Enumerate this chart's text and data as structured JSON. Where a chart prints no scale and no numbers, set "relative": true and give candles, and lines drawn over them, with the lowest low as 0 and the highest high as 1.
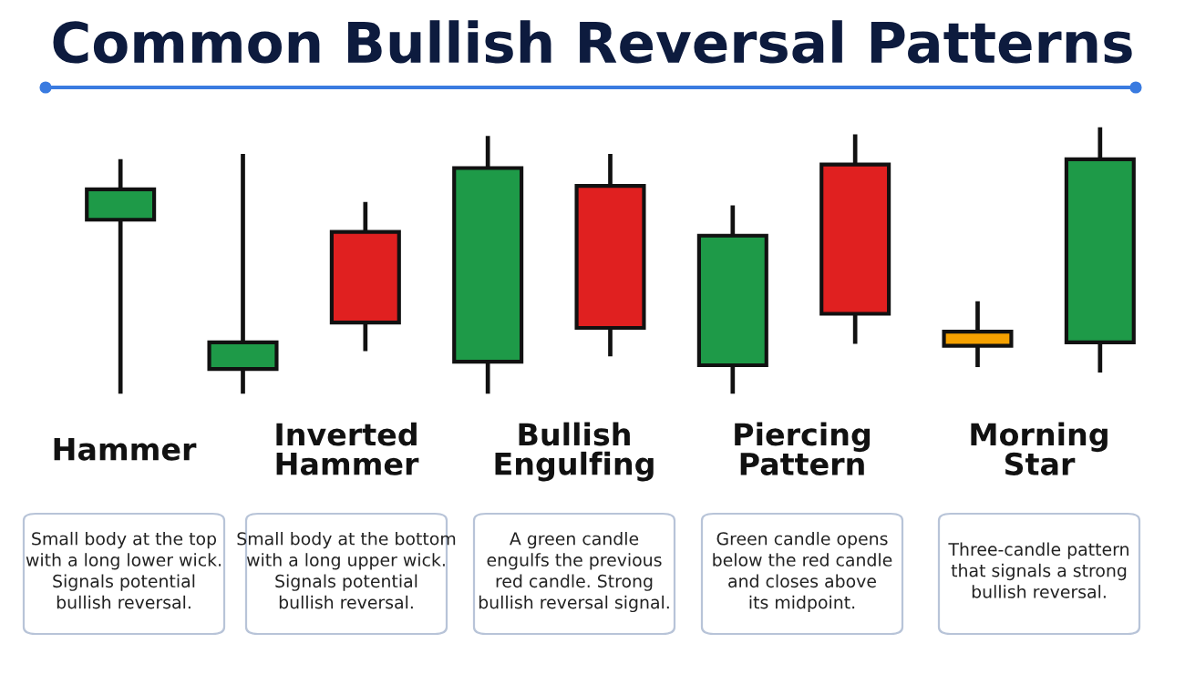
{
  "chart_data": {
    "type": "candlestick",
    "title": "Common Bullish Reversal Patterns",
    "relative": true,
    "categories": [
      null,
      null,
      null,
      null,
      null,
      null,
      null,
      null,
      null
    ],
    "ohlc": [
      [
        0.653,
        0.88,
        0,
        0.767
      ],
      [
        0.093,
        0.9,
        0,
        0.193
      ],
      [
        0.607,
        0.72,
        0.16,
        0.267
      ],
      [
        0.12,
        0.967,
        0,
        0.847
      ],
      [
        0.78,
        0.9,
        0.14,
        0.247
      ],
      [
        0.107,
        0.707,
        0,
        0.593
      ],
      [
        0.86,
        0.973,
        0.187,
        0.3
      ],
      [
        0.18,
        0.347,
        0.1,
        0.233
      ],
      [
        0.193,
        1,
        0.08,
        0.88
      ]
    ],
    "colors": [
      "#1e9a48",
      "#1e9a48",
      "#e02020",
      "#1e9a48",
      "#e02020",
      "#1e9a48",
      "#e02020",
      "#f5a100",
      "#1e9a48"
    ],
    "annotations": [
      "Hammer",
      "Small body at the top\nwith a long lower wick.\nSignals potential\nbullish reversal.",
      "Inverted\nHammer",
      "Small body at the bottom\nwith a long upper wick.\nSignals potential\nbullish reversal.",
      "Bullish\nEngulfing",
      "A green candle\nengulfs the previous\nred candle. Strong\nbullish reversal signal.",
      "Piercing\nPattern",
      "Green candle opens\nbelow the red candle\nand closes above\nits midpoint.",
      "Morning\nStar",
      "Three-candle pattern\nthat signals a strong\nbullish reversal."
    ]
  }
}
